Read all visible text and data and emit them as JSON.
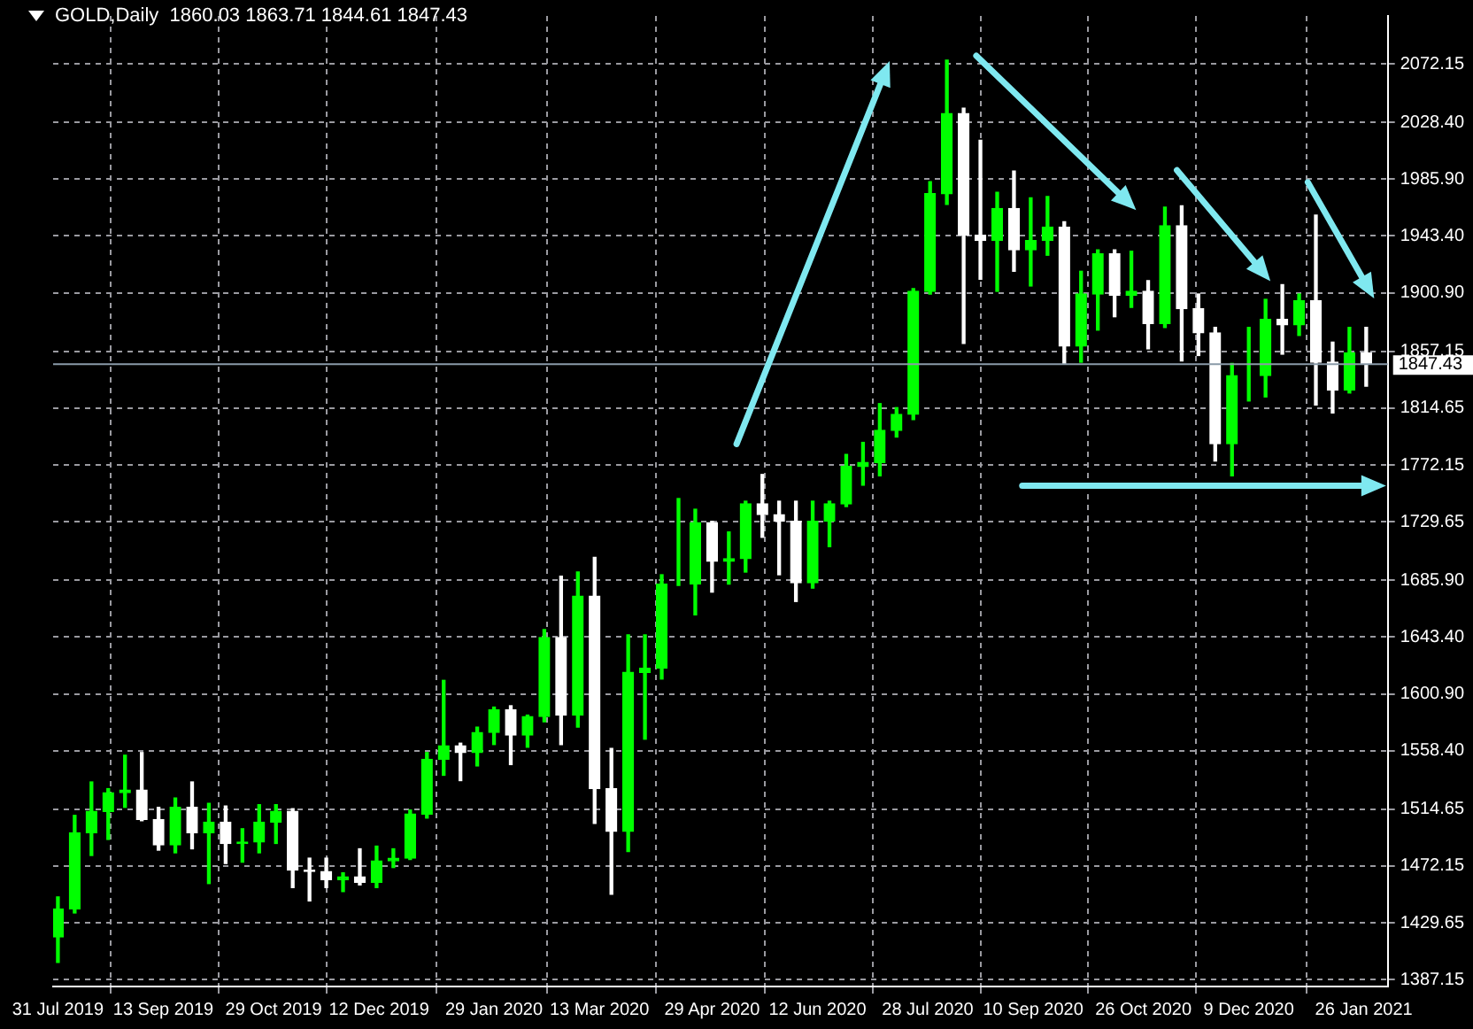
{
  "chart_data": {
    "type": "candlestick",
    "title": "GOLD,Daily  1860.03 1863.71 1844.61 1847.43",
    "colors": [
      "#00ff00",
      "#00ff00",
      "#00ff00",
      "#00ff00",
      "#00ff00",
      "#ffffff",
      "#ffffff",
      "#00ff00",
      "#ffffff",
      "#00ff00",
      "#ffffff",
      "#00ff00",
      "#00ff00",
      "#00ff00",
      "#ffffff",
      "#ffffff",
      "#ffffff",
      "#00ff00",
      "#ffffff",
      "#00ff00",
      "#00ff00",
      "#00ff00",
      "#00ff00",
      "#00ff00",
      "#ffffff",
      "#00ff00",
      "#00ff00",
      "#ffffff",
      "#00ff00",
      "#00ff00",
      "#ffffff",
      "#00ff00",
      "#ffffff",
      "#ffffff",
      "#00ff00",
      "#00ff00",
      "#00ff00",
      "#00ff00",
      "#00ff00",
      "#ffffff",
      "#00ff00",
      "#00ff00",
      "#ffffff",
      "#ffffff",
      "#ffffff",
      "#00ff00",
      "#00ff00",
      "#00ff00",
      "#00ff00",
      "#00ff00",
      "#00ff00",
      "#00ff00",
      "#00ff00",
      "#00ff00",
      "#ffffff",
      "#ffffff",
      "#00ff00",
      "#ffffff",
      "#00ff00",
      "#00ff00",
      "#ffffff",
      "#00ff00",
      "#00ff00",
      "#ffffff",
      "#00ff00",
      "#ffffff",
      "#00ff00",
      "#ffffff",
      "#ffffff",
      "#ffffff",
      "#00ff00",
      "#00ff00",
      "#00ff00",
      "#ffffff",
      "#00ff00",
      "#ffffff",
      "#ffffff",
      "#00ff00",
      "#ffffff"
    ],
    "x": [
      "2019-07-31",
      "2019-08-07",
      "2019-08-14",
      "2019-08-21",
      "2019-08-28",
      "2019-09-04",
      "2019-09-11",
      "2019-09-18",
      "2019-09-25",
      "2019-10-02",
      "2019-10-09",
      "2019-10-16",
      "2019-10-23",
      "2019-10-30",
      "2019-11-06",
      "2019-11-13",
      "2019-11-20",
      "2019-11-27",
      "2019-12-04",
      "2019-12-11",
      "2019-12-18",
      "2019-12-25",
      "2020-01-01",
      "2020-01-08",
      "2020-01-15",
      "2020-01-22",
      "2020-01-29",
      "2020-02-05",
      "2020-02-12",
      "2020-02-19",
      "2020-02-26",
      "2020-03-04",
      "2020-03-11",
      "2020-03-18",
      "2020-03-25",
      "2020-04-01",
      "2020-04-08",
      "2020-04-15",
      "2020-04-22",
      "2020-04-29",
      "2020-05-06",
      "2020-05-13",
      "2020-05-20",
      "2020-05-27",
      "2020-06-03",
      "2020-06-10",
      "2020-06-17",
      "2020-06-24",
      "2020-07-01",
      "2020-07-08",
      "2020-07-15",
      "2020-07-22",
      "2020-07-29",
      "2020-08-05",
      "2020-08-12",
      "2020-08-19",
      "2020-08-26",
      "2020-09-02",
      "2020-09-09",
      "2020-09-16",
      "2020-09-23",
      "2020-09-30",
      "2020-10-07",
      "2020-10-14",
      "2020-10-21",
      "2020-10-28",
      "2020-11-04",
      "2020-11-11",
      "2020-11-18",
      "2020-11-25",
      "2020-12-02",
      "2020-12-09",
      "2020-12-16",
      "2020-12-23",
      "2020-12-30",
      "2021-01-06",
      "2021-01-13",
      "2021-01-20",
      "2021-01-27"
    ],
    "ohlc": [
      [
        1419,
        1449,
        1400,
        1440
      ],
      [
        1440,
        1510,
        1437,
        1497
      ],
      [
        1497,
        1535,
        1480,
        1513
      ],
      [
        1513,
        1530,
        1492,
        1527
      ],
      [
        1527,
        1555,
        1516,
        1529
      ],
      [
        1529,
        1557,
        1506,
        1507
      ],
      [
        1507,
        1516,
        1484,
        1488
      ],
      [
        1488,
        1523,
        1482,
        1516
      ],
      [
        1516,
        1535,
        1485,
        1497
      ],
      [
        1497,
        1519,
        1459,
        1505
      ],
      [
        1505,
        1517,
        1474,
        1489
      ],
      [
        1489,
        1500,
        1475,
        1490
      ],
      [
        1490,
        1518,
        1482,
        1505
      ],
      [
        1505,
        1518,
        1489,
        1513
      ],
      [
        1513,
        1515,
        1456,
        1469
      ],
      [
        1469,
        1478,
        1446,
        1468
      ],
      [
        1468,
        1478,
        1456,
        1462
      ],
      [
        1462,
        1467,
        1453,
        1464
      ],
      [
        1464,
        1485,
        1458,
        1460
      ],
      [
        1460,
        1487,
        1456,
        1476
      ],
      [
        1476,
        1485,
        1471,
        1478
      ],
      [
        1478,
        1514,
        1477,
        1511
      ],
      [
        1511,
        1557,
        1508,
        1552
      ],
      [
        1552,
        1611,
        1540,
        1562
      ],
      [
        1562,
        1564,
        1536,
        1557
      ],
      [
        1557,
        1576,
        1547,
        1572
      ],
      [
        1572,
        1591,
        1563,
        1589
      ],
      [
        1589,
        1592,
        1548,
        1570
      ],
      [
        1570,
        1585,
        1561,
        1584
      ],
      [
        1584,
        1649,
        1580,
        1643
      ],
      [
        1643,
        1689,
        1563,
        1585
      ],
      [
        1585,
        1692,
        1576,
        1674
      ],
      [
        1674,
        1703,
        1504,
        1530
      ],
      [
        1530,
        1560,
        1451,
        1498
      ],
      [
        1498,
        1645,
        1483,
        1617
      ],
      [
        1617,
        1645,
        1567,
        1620
      ],
      [
        1620,
        1690,
        1612,
        1683
      ],
      [
        1683,
        1747,
        1682,
        1683
      ],
      [
        1683,
        1739,
        1660,
        1729
      ],
      [
        1729,
        1730,
        1677,
        1700
      ],
      [
        1700,
        1722,
        1683,
        1702
      ],
      [
        1702,
        1745,
        1692,
        1743
      ],
      [
        1743,
        1765,
        1718,
        1735
      ],
      [
        1735,
        1745,
        1690,
        1730
      ],
      [
        1730,
        1745,
        1670,
        1684
      ],
      [
        1684,
        1745,
        1680,
        1730
      ],
      [
        1730,
        1745,
        1711,
        1743
      ],
      [
        1743,
        1780,
        1741,
        1771
      ],
      [
        1771,
        1789,
        1757,
        1774
      ],
      [
        1774,
        1818,
        1764,
        1798
      ],
      [
        1798,
        1815,
        1793,
        1810
      ],
      [
        1810,
        1904,
        1806,
        1902
      ],
      [
        1902,
        1984,
        1900,
        1975
      ],
      [
        1975,
        2075,
        1967,
        2035
      ],
      [
        2035,
        2039,
        1863,
        1944
      ],
      [
        1944,
        2015,
        1911,
        1940
      ],
      [
        1940,
        1976,
        1902,
        1964
      ],
      [
        1964,
        1992,
        1917,
        1933
      ],
      [
        1933,
        1972,
        1906,
        1940
      ],
      [
        1940,
        1973,
        1929,
        1950
      ],
      [
        1950,
        1954,
        1848,
        1861
      ],
      [
        1861,
        1917,
        1849,
        1900
      ],
      [
        1900,
        1933,
        1873,
        1930
      ],
      [
        1930,
        1933,
        1883,
        1899
      ],
      [
        1899,
        1932,
        1890,
        1902
      ],
      [
        1902,
        1910,
        1859,
        1878
      ],
      [
        1878,
        1965,
        1875,
        1951
      ],
      [
        1951,
        1966,
        1850,
        1889
      ],
      [
        1889,
        1900,
        1854,
        1871
      ],
      [
        1871,
        1875,
        1775,
        1788
      ],
      [
        1788,
        1848,
        1764,
        1839
      ],
      [
        1839,
        1875,
        1820,
        1839
      ],
      [
        1839,
        1896,
        1823,
        1881
      ],
      [
        1881,
        1907,
        1855,
        1877
      ],
      [
        1877,
        1900,
        1869,
        1895
      ],
      [
        1895,
        1959,
        1817,
        1849
      ],
      [
        1849,
        1864,
        1811,
        1828
      ],
      [
        1828,
        1875,
        1826,
        1856
      ],
      [
        1856,
        1875,
        1831,
        1847.43
      ]
    ],
    "xlim": [
      "2019-07-29",
      "2021-02-05"
    ],
    "xticks": [
      {
        "value": "2019-07-31",
        "label": "31 Jul 2019"
      },
      {
        "value": "2019-09-13",
        "label": "13 Sep 2019"
      },
      {
        "value": "2019-10-29",
        "label": "29 Oct 2019"
      },
      {
        "value": "2019-12-12",
        "label": "12 Dec 2019"
      },
      {
        "value": "2020-01-29",
        "label": "29 Jan 2020"
      },
      {
        "value": "2020-03-13",
        "label": "13 Mar 2020"
      },
      {
        "value": "2020-04-29",
        "label": "29 Apr 2020"
      },
      {
        "value": "2020-06-12",
        "label": "12 Jun 2020"
      },
      {
        "value": "2020-07-28",
        "label": "28 Jul 2020"
      },
      {
        "value": "2020-09-10",
        "label": "10 Sep 2020"
      },
      {
        "value": "2020-10-26",
        "label": "26 Oct 2020"
      },
      {
        "value": "2020-12-09",
        "label": "9 Dec 2020"
      },
      {
        "value": "2021-01-26",
        "label": "26 Jan 2021"
      }
    ],
    "ylim": [
      1382,
      2108
    ],
    "yticks": [
      2072.15,
      {
        "value": 2028.4,
        "label": "2028.40"
      },
      {
        "value": 1985.9,
        "label": "1985.90"
      },
      {
        "value": 1943.4,
        "label": "1943.40"
      },
      {
        "value": 1900.9,
        "label": "1900.90"
      },
      1857.15,
      1814.65,
      1772.15,
      1729.65,
      {
        "value": 1685.9,
        "label": "1685.90"
      },
      {
        "value": 1643.4,
        "label": "1643.40"
      },
      {
        "value": 1600.9,
        "label": "1600.90"
      },
      {
        "value": 1558.4,
        "label": "1558.40"
      },
      1514.65,
      1472.15,
      1429.65,
      1387.15
    ],
    "grid": true,
    "ref_lines": [
      {
        "axis": "y",
        "value": 1847.43,
        "label": "1847.43",
        "color": "#8a9aa8"
      }
    ]
  }
}
